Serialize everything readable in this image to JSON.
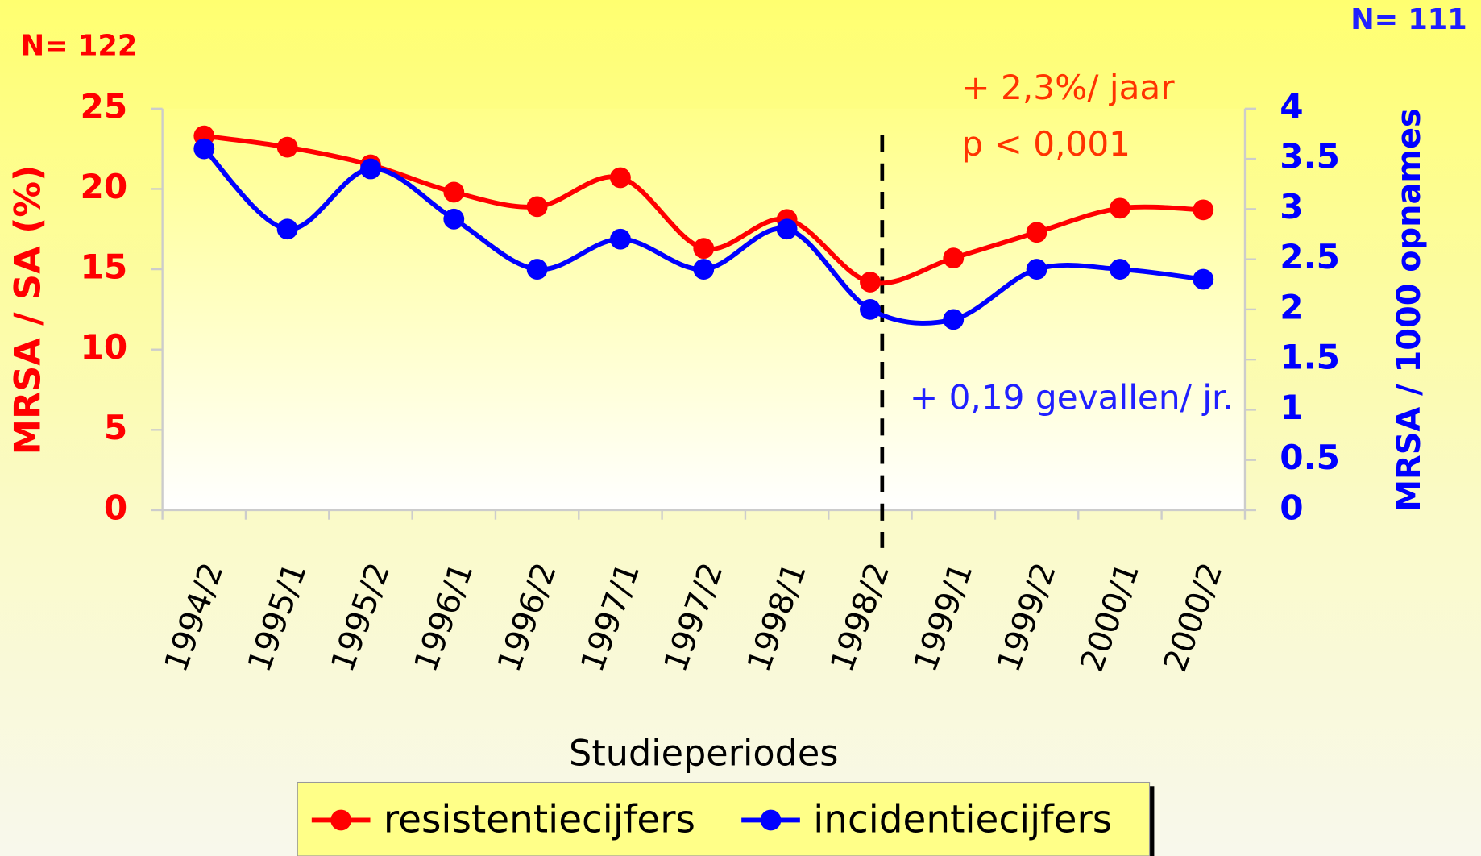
{
  "chart_data": {
    "type": "line",
    "annotations": [
      "N= 122",
      "N= 111",
      "+ 2,3%/ jaar",
      "p < 0,001",
      "+ 0,19 gevallen/ jr."
    ],
    "x_label": "Studieperiodes",
    "y_label": "MRSA / SA (%)",
    "y2_label": "MRSA / 1000 opnames",
    "categories": [
      "1994/2",
      "1995/1",
      "1995/2",
      "1996/1",
      "1996/2",
      "1997/1",
      "1997/2",
      "1998/1",
      "1998/2",
      "1999/1",
      "1999/2",
      "2000/1",
      "2000/2"
    ],
    "series": [
      {
        "name": "resistentiecijfers",
        "color": "#ff0000",
        "values": [
          23.3,
          22.6,
          21.5,
          19.8,
          18.9,
          20.7,
          16.3,
          18.1,
          14.2,
          15.7,
          17.3,
          18.8,
          18.7
        ]
      },
      {
        "name": "incidentiecijfers",
        "color": "#0000ff",
        "axis": "y2",
        "values": [
          3.6,
          2.8,
          3.4,
          2.9,
          2.4,
          2.7,
          2.4,
          2.8,
          2.0,
          1.9,
          2.4,
          2.4,
          2.3
        ]
      }
    ],
    "ylim": [
      0,
      25
    ],
    "yticks": [
      0,
      5,
      10,
      15,
      20,
      25
    ],
    "y2lim": [
      0,
      4
    ],
    "y2ticks": [
      0,
      0.5,
      1,
      1.5,
      2,
      2.5,
      3,
      3.5,
      4
    ],
    "legend": "bottom",
    "grid": false
  }
}
